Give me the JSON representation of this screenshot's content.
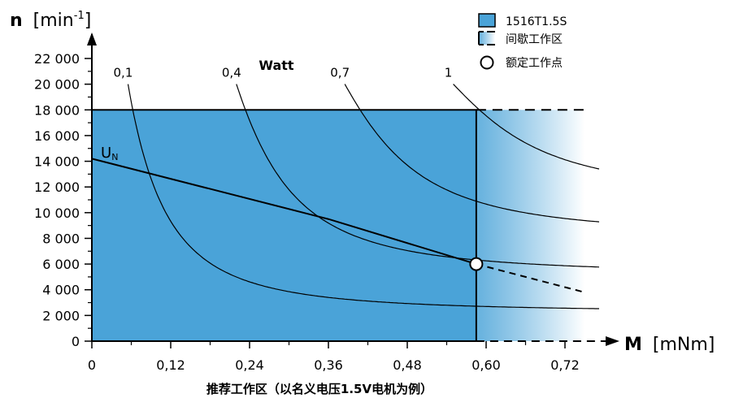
{
  "chart_data": {
    "type": "line",
    "ylabel_bold": "n",
    "ylabel_unit": "[min",
    "ylabel_sup": "-1",
    "ylabel_close": "]",
    "xlabel_bold": "M",
    "xlabel_unit": "[mNm]",
    "xlabel_sub": "推荐工作区（以名义电压1.5V电机为例）",
    "power_title": "Watt",
    "x_ticks": [
      "0",
      "0,12",
      "0,24",
      "0,36",
      "0,48",
      "0,60",
      "0,72"
    ],
    "x_tick_values": [
      0,
      0.12,
      0.24,
      0.36,
      0.48,
      0.6,
      0.72
    ],
    "y_ticks": [
      "0",
      "2 000",
      "4 000",
      "6 000",
      "8 000",
      "10 000",
      "12 000",
      "14 000",
      "16 000",
      "18 000",
      "20 000",
      "22 000"
    ],
    "y_tick_values": [
      0,
      2000,
      4000,
      6000,
      8000,
      10000,
      12000,
      14000,
      16000,
      18000,
      20000,
      22000
    ],
    "xlim": [
      0,
      0.78
    ],
    "ylim": [
      0,
      22000
    ],
    "continuous_region": {
      "m_max": 0.585,
      "n_max": 18000
    },
    "intermittent_region": {
      "m_max": 0.75,
      "n_max": 18000
    },
    "rated_point": {
      "m": 0.585,
      "n": 6000
    },
    "un_label": "U",
    "un_label_sub": "N",
    "un_line": {
      "points": [
        [
          0,
          14200
        ],
        [
          0.36,
          9500
        ],
        [
          0.585,
          6000
        ]
      ],
      "extension": [
        [
          0.585,
          6000
        ],
        [
          0.75,
          3800
        ]
      ]
    },
    "power_curves": [
      {
        "label": "0,1",
        "watts": 0.1,
        "m_start": 0.055,
        "n_start": 20000,
        "n_end": 2250
      },
      {
        "label": "0,4",
        "watts": 0.4,
        "m_start": 0.22,
        "n_start": 20000,
        "n_end": 5200
      },
      {
        "label": "0,7",
        "watts": 0.7,
        "m_start": 0.385,
        "n_start": 20000,
        "n_end": 8200
      },
      {
        "label": "1",
        "watts": 1.0,
        "m_start": 0.55,
        "n_start": 20000,
        "n_end": 11300
      }
    ],
    "legend": [
      {
        "label": "1516T1.5S",
        "kind": "continuous"
      },
      {
        "label": "间歇工作区",
        "kind": "intermittent"
      },
      {
        "label": "额定工作点",
        "kind": "rated"
      }
    ],
    "legend_position": "top-right",
    "colors": {
      "fill": "#4aa3d8",
      "fill_fade": "#ffffff",
      "line": "#000000"
    }
  }
}
